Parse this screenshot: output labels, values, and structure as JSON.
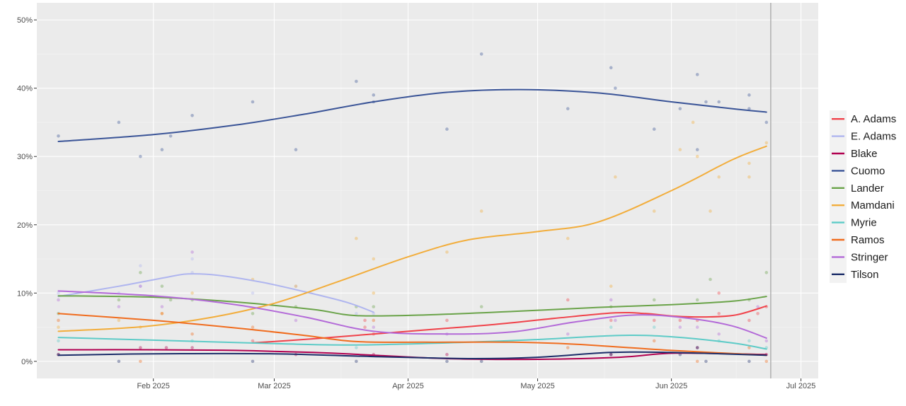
{
  "chart_data": {
    "type": "scatter",
    "title": "",
    "xlabel": "",
    "ylabel": "",
    "x_ticks": [
      {
        "date": "2025-02-01",
        "label": "Feb 2025"
      },
      {
        "date": "2025-03-01",
        "label": "Mar 2025"
      },
      {
        "date": "2025-04-01",
        "label": "Apr 2025"
      },
      {
        "date": "2025-05-01",
        "label": "May 2025"
      },
      {
        "date": "2025-06-01",
        "label": "Jun 2025"
      },
      {
        "date": "2025-07-01",
        "label": "Jul 2025"
      }
    ],
    "y_ticks": [
      {
        "value": 0,
        "label": "0%"
      },
      {
        "value": 10,
        "label": "10%"
      },
      {
        "value": 20,
        "label": "20%"
      },
      {
        "value": 30,
        "label": "30%"
      },
      {
        "value": 40,
        "label": "40%"
      },
      {
        "value": 50,
        "label": "50%"
      }
    ],
    "xlim": [
      "2025-01-05",
      "2025-07-05"
    ],
    "ylim": [
      -2.5,
      52.5
    ],
    "grid": true,
    "vline_date": "2025-06-24",
    "legend_position": "right",
    "series": [
      {
        "name": "A. Adams",
        "color": "#f0424a",
        "line": [
          [
            "2025-02-24",
            2.7
          ],
          [
            "2025-03-10",
            3.3
          ],
          [
            "2025-03-24",
            4.0
          ],
          [
            "2025-04-07",
            4.7
          ],
          [
            "2025-04-21",
            5.4
          ],
          [
            "2025-05-05",
            6.3
          ],
          [
            "2025-05-19",
            7.1
          ],
          [
            "2025-05-26",
            7.0
          ],
          [
            "2025-06-02",
            6.6
          ],
          [
            "2025-06-09",
            6.5
          ],
          [
            "2025-06-16",
            6.8
          ],
          [
            "2025-06-23",
            8.1
          ]
        ],
        "points": [
          [
            "2025-02-24",
            3
          ],
          [
            "2025-03-22",
            5
          ],
          [
            "2025-03-22",
            6
          ],
          [
            "2025-03-24",
            4
          ],
          [
            "2025-04-10",
            6
          ],
          [
            "2025-05-08",
            9
          ],
          [
            "2025-05-18",
            6
          ],
          [
            "2025-05-28",
            6
          ],
          [
            "2025-06-03",
            6
          ],
          [
            "2025-06-07",
            6
          ],
          [
            "2025-06-12",
            7
          ],
          [
            "2025-06-12",
            10
          ],
          [
            "2025-06-19",
            6
          ],
          [
            "2025-06-21",
            7
          ],
          [
            "2025-06-23",
            8
          ]
        ]
      },
      {
        "name": "E. Adams",
        "color": "#afb5ef",
        "line": [
          [
            "2025-01-10",
            9.5
          ],
          [
            "2025-01-24",
            11.0
          ],
          [
            "2025-02-04",
            12.3
          ],
          [
            "2025-02-09",
            12.8
          ],
          [
            "2025-02-16",
            12.6
          ],
          [
            "2025-02-26",
            11.6
          ],
          [
            "2025-03-08",
            10.2
          ],
          [
            "2025-03-18",
            8.6
          ],
          [
            "2025-03-24",
            7.2
          ]
        ],
        "points": [
          [
            "2025-01-10",
            10
          ],
          [
            "2025-01-24",
            10
          ],
          [
            "2025-01-29",
            14
          ],
          [
            "2025-01-29",
            11
          ],
          [
            "2025-02-10",
            15
          ],
          [
            "2025-02-10",
            13
          ],
          [
            "2025-02-24",
            10
          ],
          [
            "2025-03-06",
            11
          ],
          [
            "2025-03-20",
            7
          ],
          [
            "2025-03-24",
            7
          ]
        ]
      },
      {
        "name": "Blake",
        "color": "#b10050",
        "line": [
          [
            "2025-01-10",
            1.7
          ],
          [
            "2025-02-01",
            1.7
          ],
          [
            "2025-02-20",
            1.6
          ],
          [
            "2025-03-10",
            1.3
          ],
          [
            "2025-03-24",
            0.9
          ],
          [
            "2025-04-10",
            0.4
          ],
          [
            "2025-05-01",
            0.3
          ],
          [
            "2025-05-20",
            0.6
          ],
          [
            "2025-06-02",
            1.2
          ],
          [
            "2025-06-23",
            1.0
          ]
        ],
        "points": [
          [
            "2025-01-10",
            1
          ],
          [
            "2025-01-29",
            2
          ],
          [
            "2025-02-04",
            2
          ],
          [
            "2025-02-10",
            2
          ],
          [
            "2025-03-06",
            1
          ],
          [
            "2025-03-24",
            1
          ],
          [
            "2025-04-10",
            1
          ],
          [
            "2025-05-18",
            1
          ],
          [
            "2025-06-07",
            2
          ],
          [
            "2025-06-23",
            1
          ]
        ]
      },
      {
        "name": "Cuomo",
        "color": "#3a5497",
        "line": [
          [
            "2025-01-10",
            32.2
          ],
          [
            "2025-02-01",
            33.2
          ],
          [
            "2025-02-20",
            34.6
          ],
          [
            "2025-03-08",
            36.2
          ],
          [
            "2025-03-24",
            38.0
          ],
          [
            "2025-04-10",
            39.4
          ],
          [
            "2025-04-27",
            39.8
          ],
          [
            "2025-05-15",
            39.3
          ],
          [
            "2025-06-01",
            38.0
          ],
          [
            "2025-06-15",
            37.0
          ],
          [
            "2025-06-23",
            36.5
          ]
        ],
        "points": [
          [
            "2025-01-10",
            33
          ],
          [
            "2025-01-24",
            35
          ],
          [
            "2025-01-29",
            30
          ],
          [
            "2025-02-03",
            31
          ],
          [
            "2025-02-05",
            33
          ],
          [
            "2025-02-10",
            36
          ],
          [
            "2025-02-24",
            38
          ],
          [
            "2025-03-06",
            31
          ],
          [
            "2025-03-20",
            41
          ],
          [
            "2025-03-24",
            39
          ],
          [
            "2025-03-24",
            38
          ],
          [
            "2025-04-10",
            34
          ],
          [
            "2025-04-18",
            45
          ],
          [
            "2025-05-08",
            37
          ],
          [
            "2025-05-18",
            43
          ],
          [
            "2025-05-19",
            40
          ],
          [
            "2025-05-28",
            34
          ],
          [
            "2025-06-03",
            37
          ],
          [
            "2025-06-07",
            31
          ],
          [
            "2025-06-07",
            42
          ],
          [
            "2025-06-09",
            38
          ],
          [
            "2025-06-12",
            38
          ],
          [
            "2025-06-19",
            39
          ],
          [
            "2025-06-19",
            37
          ],
          [
            "2025-06-23",
            35
          ]
        ]
      },
      {
        "name": "Lander",
        "color": "#6aa349",
        "line": [
          [
            "2025-01-10",
            9.6
          ],
          [
            "2025-02-01",
            9.4
          ],
          [
            "2025-02-20",
            8.7
          ],
          [
            "2025-03-10",
            7.6
          ],
          [
            "2025-03-20",
            6.7
          ],
          [
            "2025-04-05",
            6.8
          ],
          [
            "2025-04-25",
            7.3
          ],
          [
            "2025-05-15",
            7.9
          ],
          [
            "2025-06-01",
            8.3
          ],
          [
            "2025-06-15",
            8.8
          ],
          [
            "2025-06-23",
            9.5
          ]
        ],
        "points": [
          [
            "2025-01-10",
            7
          ],
          [
            "2025-01-24",
            9
          ],
          [
            "2025-01-29",
            13
          ],
          [
            "2025-02-03",
            11
          ],
          [
            "2025-02-05",
            9
          ],
          [
            "2025-02-10",
            9
          ],
          [
            "2025-02-24",
            7
          ],
          [
            "2025-03-06",
            8
          ],
          [
            "2025-03-20",
            8
          ],
          [
            "2025-03-24",
            8
          ],
          [
            "2025-04-18",
            8
          ],
          [
            "2025-05-18",
            8
          ],
          [
            "2025-05-28",
            9
          ],
          [
            "2025-06-07",
            9
          ],
          [
            "2025-06-10",
            12
          ],
          [
            "2025-06-19",
            9
          ],
          [
            "2025-06-23",
            13
          ]
        ]
      },
      {
        "name": "Mamdani",
        "color": "#f2ad3b",
        "line": [
          [
            "2025-01-10",
            4.4
          ],
          [
            "2025-01-30",
            5.1
          ],
          [
            "2025-02-15",
            6.5
          ],
          [
            "2025-03-01",
            8.5
          ],
          [
            "2025-03-15",
            11.5
          ],
          [
            "2025-04-01",
            15.3
          ],
          [
            "2025-04-15",
            17.8
          ],
          [
            "2025-05-01",
            19.0
          ],
          [
            "2025-05-15",
            20.4
          ],
          [
            "2025-06-01",
            25.0
          ],
          [
            "2025-06-15",
            29.5
          ],
          [
            "2025-06-23",
            31.5
          ]
        ],
        "points": [
          [
            "2025-01-10",
            5
          ],
          [
            "2025-01-24",
            6
          ],
          [
            "2025-01-29",
            5
          ],
          [
            "2025-02-03",
            7
          ],
          [
            "2025-02-10",
            10
          ],
          [
            "2025-02-24",
            12
          ],
          [
            "2025-03-06",
            11
          ],
          [
            "2025-03-20",
            18
          ],
          [
            "2025-03-24",
            15
          ],
          [
            "2025-03-24",
            10
          ],
          [
            "2025-04-10",
            16
          ],
          [
            "2025-04-18",
            22
          ],
          [
            "2025-05-08",
            18
          ],
          [
            "2025-05-18",
            11
          ],
          [
            "2025-05-19",
            27
          ],
          [
            "2025-05-28",
            22
          ],
          [
            "2025-06-03",
            31
          ],
          [
            "2025-06-06",
            35
          ],
          [
            "2025-06-07",
            30
          ],
          [
            "2025-06-10",
            22
          ],
          [
            "2025-06-12",
            27
          ],
          [
            "2025-06-19",
            29
          ],
          [
            "2025-06-19",
            27
          ],
          [
            "2025-06-23",
            32
          ]
        ]
      },
      {
        "name": "Myrie",
        "color": "#5dcbc7",
        "line": [
          [
            "2025-01-10",
            3.5
          ],
          [
            "2025-02-01",
            3.1
          ],
          [
            "2025-03-01",
            2.6
          ],
          [
            "2025-03-20",
            2.4
          ],
          [
            "2025-04-15",
            2.8
          ],
          [
            "2025-05-01",
            3.2
          ],
          [
            "2025-05-20",
            3.8
          ],
          [
            "2025-06-01",
            3.6
          ],
          [
            "2025-06-15",
            2.7
          ],
          [
            "2025-06-23",
            1.8
          ]
        ],
        "points": [
          [
            "2025-01-10",
            3
          ],
          [
            "2025-02-10",
            3
          ],
          [
            "2025-03-20",
            2
          ],
          [
            "2025-05-18",
            5
          ],
          [
            "2025-05-28",
            5
          ],
          [
            "2025-06-12",
            3
          ],
          [
            "2025-06-19",
            3
          ],
          [
            "2025-06-23",
            2
          ]
        ]
      },
      {
        "name": "Ramos",
        "color": "#f06c1e",
        "line": [
          [
            "2025-01-10",
            7.0
          ],
          [
            "2025-02-01",
            6.0
          ],
          [
            "2025-02-20",
            4.9
          ],
          [
            "2025-03-08",
            3.8
          ],
          [
            "2025-03-20",
            2.9
          ],
          [
            "2025-04-05",
            2.8
          ],
          [
            "2025-04-25",
            2.8
          ],
          [
            "2025-05-10",
            2.5
          ],
          [
            "2025-06-01",
            1.6
          ],
          [
            "2025-06-23",
            0.9
          ]
        ],
        "points": [
          [
            "2025-01-10",
            6
          ],
          [
            "2025-01-29",
            0
          ],
          [
            "2025-02-03",
            7
          ],
          [
            "2025-02-10",
            4
          ],
          [
            "2025-02-24",
            5
          ],
          [
            "2025-03-24",
            6
          ],
          [
            "2025-05-08",
            2
          ],
          [
            "2025-05-28",
            3
          ],
          [
            "2025-06-07",
            0
          ],
          [
            "2025-06-19",
            2
          ],
          [
            "2025-06-23",
            0
          ]
        ]
      },
      {
        "name": "Stringer",
        "color": "#b36ad8",
        "line": [
          [
            "2025-01-10",
            10.3
          ],
          [
            "2025-02-01",
            9.6
          ],
          [
            "2025-02-20",
            8.3
          ],
          [
            "2025-03-08",
            6.5
          ],
          [
            "2025-03-24",
            4.4
          ],
          [
            "2025-04-10",
            4.0
          ],
          [
            "2025-04-25",
            4.3
          ],
          [
            "2025-05-10",
            5.8
          ],
          [
            "2025-05-24",
            6.8
          ],
          [
            "2025-06-05",
            6.3
          ],
          [
            "2025-06-15",
            5.2
          ],
          [
            "2025-06-23",
            3.4
          ]
        ],
        "points": [
          [
            "2025-01-10",
            9
          ],
          [
            "2025-01-24",
            8
          ],
          [
            "2025-01-29",
            11
          ],
          [
            "2025-02-03",
            8
          ],
          [
            "2025-02-10",
            16
          ],
          [
            "2025-03-06",
            6
          ],
          [
            "2025-03-24",
            5
          ],
          [
            "2025-04-10",
            4
          ],
          [
            "2025-05-08",
            4
          ],
          [
            "2025-05-18",
            9
          ],
          [
            "2025-05-19",
            6
          ],
          [
            "2025-06-03",
            5
          ],
          [
            "2025-06-07",
            5
          ],
          [
            "2025-06-12",
            4
          ],
          [
            "2025-06-21",
            8
          ],
          [
            "2025-06-23",
            3
          ]
        ]
      },
      {
        "name": "Tilson",
        "color": "#1c2d69",
        "line": [
          [
            "2025-01-10",
            0.9
          ],
          [
            "2025-02-01",
            1.1
          ],
          [
            "2025-03-01",
            1.1
          ],
          [
            "2025-03-24",
            0.7
          ],
          [
            "2025-04-15",
            0.4
          ],
          [
            "2025-05-01",
            0.6
          ],
          [
            "2025-05-18",
            1.3
          ],
          [
            "2025-06-01",
            1.3
          ],
          [
            "2025-06-23",
            0.9
          ]
        ],
        "points": [
          [
            "2025-01-10",
            1
          ],
          [
            "2025-01-24",
            0
          ],
          [
            "2025-02-24",
            0
          ],
          [
            "2025-03-20",
            0
          ],
          [
            "2025-04-10",
            0
          ],
          [
            "2025-04-18",
            0
          ],
          [
            "2025-05-18",
            1
          ],
          [
            "2025-06-03",
            1
          ],
          [
            "2025-06-07",
            2
          ],
          [
            "2025-06-09",
            0
          ],
          [
            "2025-06-19",
            0
          ]
        ]
      }
    ]
  }
}
